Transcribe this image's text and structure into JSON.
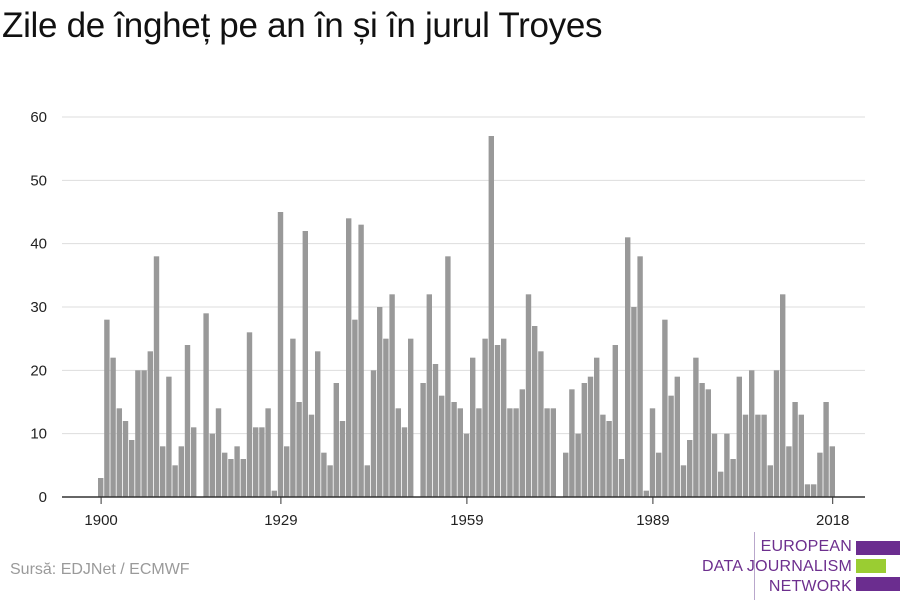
{
  "title": "Zile de îngheț pe an în și în jurul Troyes",
  "source": "Sursă: EDJNet / ECMWF",
  "logo": {
    "line1": "EUROPEAN",
    "line2": "DATA JOURNALISM",
    "line3": "NETWORK",
    "colors": {
      "purple": "#6b2d8f",
      "green": "#9acd32"
    }
  },
  "chart_data": {
    "type": "bar",
    "title": "Zile de îngheț pe an în și în jurul Troyes",
    "xlabel": "",
    "ylabel": "",
    "ylim": [
      0,
      60
    ],
    "yticks": [
      0,
      10,
      20,
      30,
      40,
      50,
      60
    ],
    "xticks": [
      1900,
      1929,
      1959,
      1989,
      2018
    ],
    "bar_color": "#999999",
    "grid": true,
    "x": [
      1900,
      1901,
      1902,
      1903,
      1904,
      1905,
      1906,
      1907,
      1908,
      1909,
      1910,
      1911,
      1912,
      1913,
      1914,
      1915,
      1916,
      1917,
      1918,
      1919,
      1920,
      1921,
      1922,
      1923,
      1924,
      1925,
      1926,
      1927,
      1928,
      1929,
      1930,
      1931,
      1932,
      1933,
      1934,
      1935,
      1936,
      1937,
      1938,
      1939,
      1940,
      1941,
      1942,
      1943,
      1944,
      1945,
      1946,
      1947,
      1948,
      1949,
      1950,
      1951,
      1952,
      1953,
      1954,
      1955,
      1956,
      1957,
      1958,
      1959,
      1960,
      1961,
      1962,
      1963,
      1964,
      1965,
      1966,
      1967,
      1968,
      1969,
      1970,
      1971,
      1972,
      1973,
      1974,
      1975,
      1976,
      1977,
      1978,
      1979,
      1980,
      1981,
      1982,
      1983,
      1984,
      1985,
      1986,
      1987,
      1988,
      1989,
      1990,
      1991,
      1992,
      1993,
      1994,
      1995,
      1996,
      1997,
      1998,
      1999,
      2000,
      2001,
      2002,
      2003,
      2004,
      2005,
      2006,
      2007,
      2008,
      2009,
      2010,
      2011,
      2012,
      2013,
      2014,
      2015,
      2016,
      2017,
      2018
    ],
    "values": [
      3,
      28,
      22,
      14,
      12,
      9,
      20,
      20,
      23,
      38,
      8,
      19,
      5,
      8,
      24,
      11,
      0,
      29,
      10,
      14,
      7,
      6,
      8,
      6,
      26,
      11,
      11,
      14,
      1,
      45,
      8,
      25,
      15,
      42,
      13,
      23,
      7,
      5,
      18,
      12,
      44,
      28,
      43,
      5,
      20,
      30,
      25,
      32,
      14,
      11,
      25,
      0,
      18,
      32,
      21,
      16,
      38,
      15,
      14,
      10,
      22,
      14,
      25,
      57,
      24,
      25,
      14,
      14,
      17,
      32,
      27,
      23,
      14,
      14,
      0,
      7,
      17,
      10,
      18,
      19,
      22,
      13,
      12,
      24,
      6,
      41,
      30,
      38,
      1,
      14,
      7,
      28,
      16,
      19,
      5,
      9,
      22,
      18,
      17,
      10,
      4,
      10,
      6,
      19,
      13,
      20,
      13,
      13,
      5,
      20,
      32,
      8,
      15,
      13,
      2,
      2,
      7,
      15,
      8
    ]
  }
}
